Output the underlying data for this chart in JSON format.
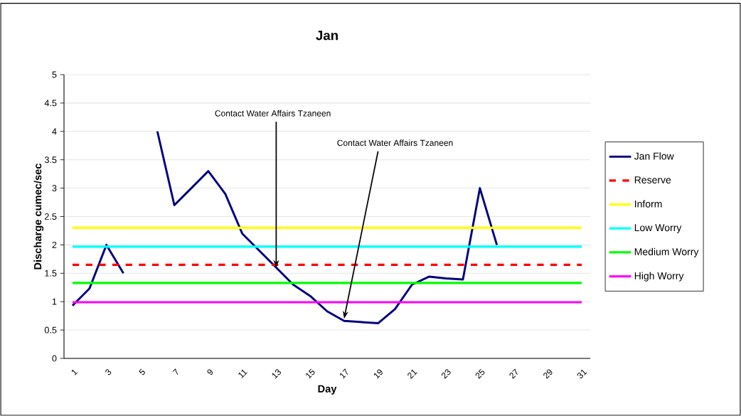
{
  "chart_data": {
    "type": "line",
    "title": "Jan",
    "xlabel": "Day",
    "ylabel": "Discharge cumec/sec",
    "categories": [
      "1",
      null,
      "3",
      null,
      "5",
      null,
      "7",
      null,
      "9",
      null,
      "11",
      null,
      "13",
      null,
      "15",
      null,
      "17",
      null,
      "19",
      null,
      "21",
      null,
      "23",
      null,
      "25",
      null,
      "27",
      null,
      "29",
      null,
      "31"
    ],
    "series": [
      {
        "name": "Jan Flow",
        "color": "#000080",
        "values": [
          0.93,
          1.23,
          2.0,
          1.5,
          null,
          4.0,
          2.7,
          3.0,
          3.3,
          2.9,
          2.2,
          1.9,
          1.6,
          1.3,
          1.1,
          0.83,
          0.66,
          0.64,
          0.62,
          0.87,
          1.3,
          1.44,
          1.41,
          1.39,
          3.0,
          2.0,
          null,
          null,
          null,
          null,
          null
        ]
      },
      {
        "name": "Reserve",
        "color": "#ff0000",
        "line_style": "dashed",
        "values": [
          1.65,
          1.65,
          1.65,
          1.65,
          1.65,
          1.65,
          1.65,
          1.65,
          1.65,
          1.65,
          1.65,
          1.65,
          1.65,
          1.65,
          1.65,
          1.65,
          1.65,
          1.65,
          1.65,
          1.65,
          1.65,
          1.65,
          1.65,
          1.65,
          1.65,
          1.65,
          1.65,
          1.65,
          1.65,
          1.65,
          1.65
        ]
      },
      {
        "name": "Inform",
        "color": "#ffff00",
        "values": [
          2.3,
          2.3,
          2.3,
          2.3,
          2.3,
          2.3,
          2.3,
          2.3,
          2.3,
          2.3,
          2.3,
          2.3,
          2.3,
          2.3,
          2.3,
          2.3,
          2.3,
          2.3,
          2.3,
          2.3,
          2.3,
          2.3,
          2.3,
          2.3,
          2.3,
          2.3,
          2.3,
          2.3,
          2.3,
          2.3,
          2.3
        ]
      },
      {
        "name": "Low Worry",
        "color": "#00ffff",
        "values": [
          1.97,
          1.97,
          1.97,
          1.97,
          1.97,
          1.97,
          1.97,
          1.97,
          1.97,
          1.97,
          1.97,
          1.97,
          1.97,
          1.97,
          1.97,
          1.97,
          1.97,
          1.97,
          1.97,
          1.97,
          1.97,
          1.97,
          1.97,
          1.97,
          1.97,
          1.97,
          1.97,
          1.97,
          1.97,
          1.97,
          1.97
        ]
      },
      {
        "name": "Medium Worry",
        "color": "#00ff00",
        "values": [
          1.33,
          1.33,
          1.33,
          1.33,
          1.33,
          1.33,
          1.33,
          1.33,
          1.33,
          1.33,
          1.33,
          1.33,
          1.33,
          1.33,
          1.33,
          1.33,
          1.33,
          1.33,
          1.33,
          1.33,
          1.33,
          1.33,
          1.33,
          1.33,
          1.33,
          1.33,
          1.33,
          1.33,
          1.33,
          1.33,
          1.33
        ]
      },
      {
        "name": "High Worry",
        "color": "#ff00ff",
        "values": [
          0.99,
          0.99,
          0.99,
          0.99,
          0.99,
          0.99,
          0.99,
          0.99,
          0.99,
          0.99,
          0.99,
          0.99,
          0.99,
          0.99,
          0.99,
          0.99,
          0.99,
          0.99,
          0.99,
          0.99,
          0.99,
          0.99,
          0.99,
          0.99,
          0.99,
          0.99,
          0.99,
          0.99,
          0.99,
          0.99,
          0.99
        ]
      }
    ],
    "ylim": [
      0,
      5
    ],
    "yticks": [
      0,
      0.5,
      1,
      1.5,
      2,
      2.5,
      3,
      3.5,
      4,
      4.5,
      5
    ],
    "grid": "y",
    "legend": "right",
    "marker": "none",
    "line_style": "solid",
    "annotations": [
      {
        "text": "Contact Water Affairs Tzaneen",
        "x": "13",
        "y": 1.6
      },
      {
        "text": "Contact Water Affairs Tzaneen",
        "x": "17",
        "y": 0.7
      }
    ]
  }
}
